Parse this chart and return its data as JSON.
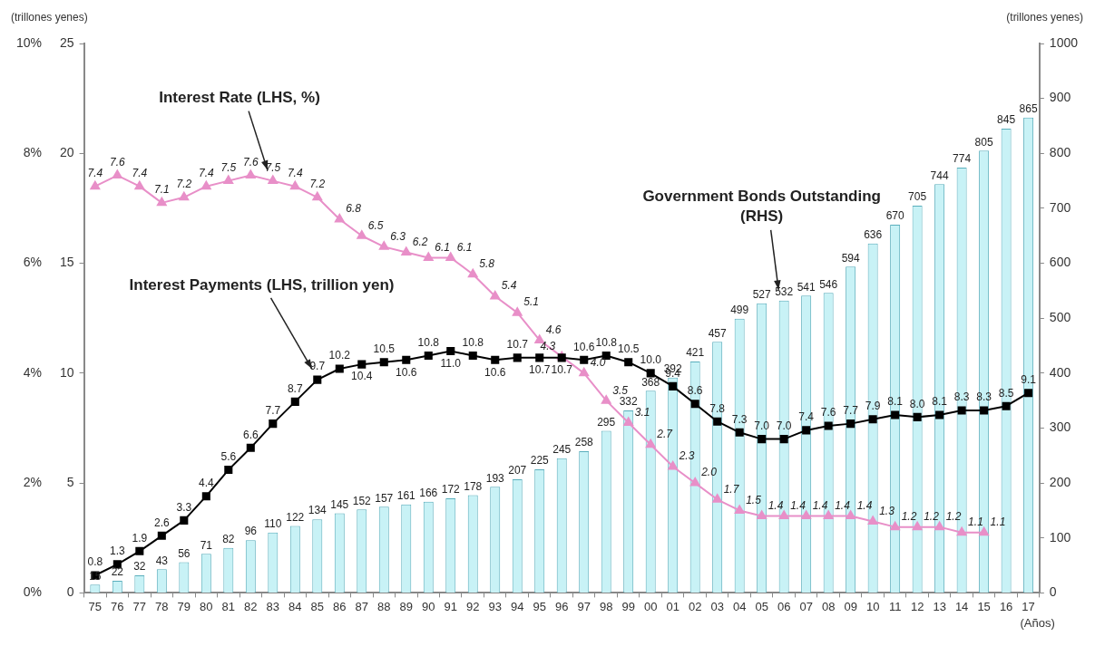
{
  "chart_data": {
    "type": "bar",
    "xlabel": "(Años)",
    "ylabel": "(trillones yenes)",
    "y2label": "(trillones yenes)",
    "categories": [
      "75",
      "76",
      "77",
      "78",
      "79",
      "80",
      "81",
      "82",
      "83",
      "84",
      "85",
      "86",
      "87",
      "88",
      "89",
      "90",
      "91",
      "92",
      "93",
      "94",
      "95",
      "96",
      "97",
      "98",
      "99",
      "00",
      "01",
      "02",
      "03",
      "04",
      "05",
      "06",
      "07",
      "08",
      "09",
      "10",
      "11",
      "12",
      "13",
      "14",
      "15",
      "16",
      "17"
    ],
    "ylim": [
      0,
      25
    ],
    "yticks": [
      0,
      5,
      10,
      15,
      20,
      25
    ],
    "y2lim": [
      0,
      1000
    ],
    "y2ticks": [
      0,
      100,
      200,
      300,
      400,
      500,
      600,
      700,
      800,
      900,
      1000
    ],
    "y3lim": [
      0,
      10
    ],
    "y3ticks": [
      {
        "value": 0,
        "label": "0%"
      },
      {
        "value": 2,
        "label": "2%"
      },
      {
        "value": 4,
        "label": "4%"
      },
      {
        "value": 6,
        "label": "6%"
      },
      {
        "value": 8,
        "label": "8%"
      },
      {
        "value": 10,
        "label": "10%"
      }
    ],
    "legend": false,
    "grid": false,
    "series": [
      {
        "name": "Government Bonds Outstanding (RHS)",
        "axis": "y2",
        "color": "#c8f2f6",
        "values": [
          15,
          22,
          32,
          43,
          56,
          71,
          82,
          96,
          110,
          122,
          134,
          145,
          152,
          157,
          161,
          166,
          172,
          178,
          193,
          207,
          225,
          245,
          258,
          295,
          332,
          368,
          392,
          421,
          457,
          499,
          527,
          532,
          541,
          546,
          594,
          636,
          670,
          705,
          744,
          774,
          805,
          845,
          865
        ],
        "value_labels": [
          "15",
          "22",
          "32",
          "43",
          "56",
          "71",
          "82",
          "96",
          "110",
          "122",
          "134",
          "145",
          "152",
          "157",
          "161",
          "166",
          "172",
          "178",
          "193",
          "207",
          "225",
          "245",
          "258",
          "295",
          "332",
          "368",
          "392",
          "421",
          "457",
          "499",
          "527",
          "532",
          "541",
          "546",
          "594",
          "636",
          "670",
          "705",
          "744",
          "774",
          "805",
          "845",
          "865"
        ]
      },
      {
        "name": "Interest Payments (LHS, trillion yen)",
        "type": "line",
        "color": "#000000",
        "marker": "square",
        "values": [
          0.8,
          1.3,
          1.9,
          2.6,
          3.3,
          4.4,
          5.6,
          6.6,
          7.7,
          8.7,
          9.7,
          10.2,
          10.4,
          10.5,
          10.6,
          10.8,
          11.0,
          10.8,
          10.6,
          10.7,
          10.7,
          10.7,
          10.6,
          10.8,
          10.5,
          10.0,
          9.4,
          8.6,
          7.8,
          7.3,
          7.0,
          7.0,
          7.4,
          7.6,
          7.7,
          7.9,
          8.1,
          8.0,
          8.1,
          8.3,
          8.3,
          8.5,
          9.1
        ],
        "value_labels": [
          "0.8",
          "1.3",
          "1.9",
          "2.6",
          "3.3",
          "4.4",
          "5.6",
          "6.6",
          "7.7",
          "8.7",
          "9.7",
          "10.2",
          "10.4",
          "10.5",
          "10.6",
          "10.8",
          "11.0",
          "10.8",
          "10.6",
          "10.7",
          "10.7",
          "10.7",
          "10.6",
          "10.8",
          "10.5",
          "10.0",
          "9.4",
          "8.6",
          "7.8",
          "7.3",
          "7.0",
          "7.0",
          "7.4",
          "7.6",
          "7.7",
          "7.9",
          "8.1",
          "8.0",
          "8.1",
          "8.3",
          "8.3",
          "8.5",
          "9.1"
        ]
      },
      {
        "name": "Interest Rate (LHS, %)",
        "type": "line",
        "axis": "y3",
        "color": "#e88fc8",
        "marker": "triangle",
        "values": [
          7.4,
          7.6,
          7.4,
          7.1,
          7.2,
          7.4,
          7.5,
          7.6,
          7.5,
          7.4,
          7.2,
          6.8,
          6.5,
          6.3,
          6.2,
          6.1,
          6.1,
          5.8,
          5.4,
          5.1,
          4.6,
          4.3,
          4.0,
          3.5,
          3.1,
          2.7,
          2.3,
          2.0,
          1.7,
          1.5,
          1.4,
          1.4,
          1.4,
          1.4,
          1.4,
          1.3,
          1.2,
          1.2,
          1.2,
          1.1,
          1.1,
          null,
          null
        ],
        "value_labels": [
          "7.4",
          "7.6",
          "7.4",
          "7.1",
          "7.2",
          "7.4",
          "7.5",
          "7.6",
          "7.5",
          "7.4",
          "7.2",
          "6.8",
          "6.5",
          "6.3",
          "6.2",
          "6.1",
          "6.1",
          "5.8",
          "5.4",
          "5.1",
          "4.6",
          "4.3",
          "4.0",
          "3.5",
          "3.1",
          "2.7",
          "2.3",
          "2.0",
          "1.7",
          "1.5",
          "1.4",
          "1.4",
          "1.4",
          "1.4",
          "1.4",
          "1.3",
          "1.2",
          "1.2",
          "1.2",
          "1.1",
          "1.1",
          null,
          null
        ]
      }
    ]
  }
}
